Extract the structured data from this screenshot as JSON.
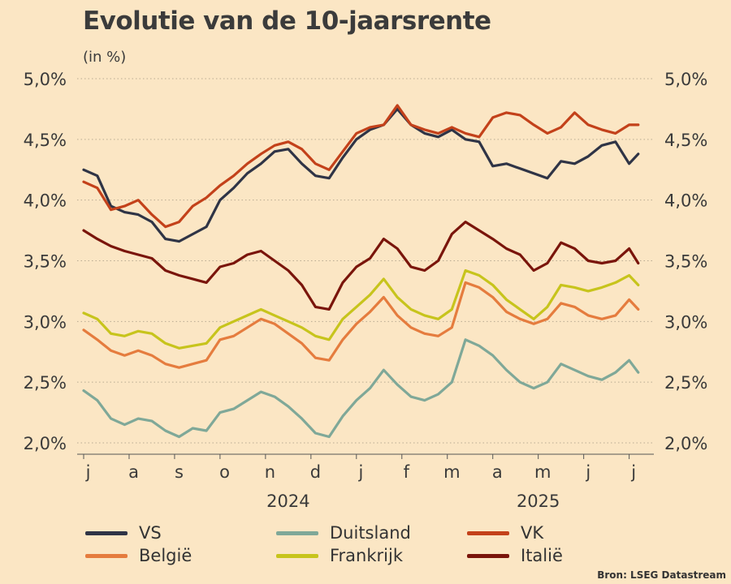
{
  "title": "Evolutie van de 10-jaarsrente",
  "subtitle": "(in %)",
  "source": "Bron: LSEG Datastream",
  "chart_data": {
    "type": "line",
    "y_ticks": [
      "2,0%",
      "2,5%",
      "3,0%",
      "3,5%",
      "4,0%",
      "4,5%",
      "5,0%"
    ],
    "y_tick_values": [
      2.0,
      2.5,
      3.0,
      3.5,
      4.0,
      4.5,
      5.0
    ],
    "ylim": [
      2.0,
      5.0
    ],
    "xlim": [
      0,
      12.4
    ],
    "grid": "horizontal dotted",
    "months": [
      "j",
      "a",
      "s",
      "o",
      "n",
      "d",
      "j",
      "f",
      "m",
      "a",
      "m",
      "j",
      "j"
    ],
    "years": [
      {
        "label": "2024",
        "center_month": 4.5
      },
      {
        "label": "2025",
        "center_month": 10.0
      }
    ],
    "x_note": "x in months since start of July 2024",
    "series": [
      {
        "name": "VS",
        "color": "#2f3446",
        "x": [
          0,
          0.3,
          0.6,
          0.9,
          1.2,
          1.5,
          1.8,
          2.1,
          2.4,
          2.7,
          3.0,
          3.3,
          3.6,
          3.9,
          4.2,
          4.5,
          4.8,
          5.1,
          5.4,
          5.7,
          6.0,
          6.3,
          6.6,
          6.9,
          7.2,
          7.5,
          7.8,
          8.1,
          8.4,
          8.7,
          9.0,
          9.3,
          9.6,
          9.9,
          10.2,
          10.5,
          10.8,
          11.1,
          11.4,
          11.7,
          12.0,
          12.2
        ],
        "values": [
          4.25,
          4.2,
          3.95,
          3.9,
          3.88,
          3.82,
          3.68,
          3.66,
          3.72,
          3.78,
          4.0,
          4.1,
          4.22,
          4.3,
          4.4,
          4.42,
          4.3,
          4.2,
          4.18,
          4.35,
          4.5,
          4.58,
          4.62,
          4.75,
          4.62,
          4.55,
          4.52,
          4.58,
          4.5,
          4.48,
          4.28,
          4.3,
          4.26,
          4.22,
          4.18,
          4.32,
          4.3,
          4.36,
          4.45,
          4.48,
          4.3,
          4.38
        ]
      },
      {
        "name": "VK",
        "color": "#c3411a",
        "x": [
          0,
          0.3,
          0.6,
          0.9,
          1.2,
          1.5,
          1.8,
          2.1,
          2.4,
          2.7,
          3.0,
          3.3,
          3.6,
          3.9,
          4.2,
          4.5,
          4.8,
          5.1,
          5.4,
          5.7,
          6.0,
          6.3,
          6.6,
          6.9,
          7.2,
          7.5,
          7.8,
          8.1,
          8.4,
          8.7,
          9.0,
          9.3,
          9.6,
          9.9,
          10.2,
          10.5,
          10.8,
          11.1,
          11.4,
          11.7,
          12.0,
          12.2
        ],
        "values": [
          4.15,
          4.1,
          3.92,
          3.95,
          4.0,
          3.88,
          3.78,
          3.82,
          3.95,
          4.02,
          4.12,
          4.2,
          4.3,
          4.38,
          4.45,
          4.48,
          4.42,
          4.3,
          4.25,
          4.4,
          4.55,
          4.6,
          4.62,
          4.78,
          4.62,
          4.58,
          4.55,
          4.6,
          4.55,
          4.52,
          4.68,
          4.72,
          4.7,
          4.62,
          4.55,
          4.6,
          4.72,
          4.62,
          4.58,
          4.55,
          4.62,
          4.62
        ]
      },
      {
        "name": "Italië",
        "color": "#7a150b",
        "x": [
          0,
          0.3,
          0.6,
          0.9,
          1.2,
          1.5,
          1.8,
          2.1,
          2.4,
          2.7,
          3.0,
          3.3,
          3.6,
          3.9,
          4.2,
          4.5,
          4.8,
          5.1,
          5.4,
          5.7,
          6.0,
          6.3,
          6.6,
          6.9,
          7.2,
          7.5,
          7.8,
          8.1,
          8.4,
          8.7,
          9.0,
          9.3,
          9.6,
          9.9,
          10.2,
          10.5,
          10.8,
          11.1,
          11.4,
          11.7,
          12.0,
          12.2
        ],
        "values": [
          3.75,
          3.68,
          3.62,
          3.58,
          3.55,
          3.52,
          3.42,
          3.38,
          3.35,
          3.32,
          3.45,
          3.48,
          3.55,
          3.58,
          3.5,
          3.42,
          3.3,
          3.12,
          3.1,
          3.32,
          3.45,
          3.52,
          3.68,
          3.6,
          3.45,
          3.42,
          3.5,
          3.72,
          3.82,
          3.75,
          3.68,
          3.6,
          3.55,
          3.42,
          3.48,
          3.65,
          3.6,
          3.5,
          3.48,
          3.5,
          3.6,
          3.48
        ]
      },
      {
        "name": "Frankrijk",
        "color": "#c7c41c",
        "x": [
          0,
          0.3,
          0.6,
          0.9,
          1.2,
          1.5,
          1.8,
          2.1,
          2.4,
          2.7,
          3.0,
          3.3,
          3.6,
          3.9,
          4.2,
          4.5,
          4.8,
          5.1,
          5.4,
          5.7,
          6.0,
          6.3,
          6.6,
          6.9,
          7.2,
          7.5,
          7.8,
          8.1,
          8.4,
          8.7,
          9.0,
          9.3,
          9.6,
          9.9,
          10.2,
          10.5,
          10.8,
          11.1,
          11.4,
          11.7,
          12.0,
          12.2
        ],
        "values": [
          3.07,
          3.02,
          2.9,
          2.88,
          2.92,
          2.9,
          2.82,
          2.78,
          2.8,
          2.82,
          2.95,
          3.0,
          3.05,
          3.1,
          3.05,
          3.0,
          2.95,
          2.88,
          2.85,
          3.02,
          3.12,
          3.22,
          3.35,
          3.2,
          3.1,
          3.05,
          3.02,
          3.1,
          3.42,
          3.38,
          3.3,
          3.18,
          3.1,
          3.02,
          3.12,
          3.3,
          3.28,
          3.25,
          3.28,
          3.32,
          3.38,
          3.3
        ]
      },
      {
        "name": "België",
        "color": "#e57c3e",
        "x": [
          0,
          0.3,
          0.6,
          0.9,
          1.2,
          1.5,
          1.8,
          2.1,
          2.4,
          2.7,
          3.0,
          3.3,
          3.6,
          3.9,
          4.2,
          4.5,
          4.8,
          5.1,
          5.4,
          5.7,
          6.0,
          6.3,
          6.6,
          6.9,
          7.2,
          7.5,
          7.8,
          8.1,
          8.4,
          8.7,
          9.0,
          9.3,
          9.6,
          9.9,
          10.2,
          10.5,
          10.8,
          11.1,
          11.4,
          11.7,
          12.0,
          12.2
        ],
        "values": [
          2.93,
          2.85,
          2.76,
          2.72,
          2.76,
          2.72,
          2.65,
          2.62,
          2.65,
          2.68,
          2.85,
          2.88,
          2.95,
          3.02,
          2.98,
          2.9,
          2.82,
          2.7,
          2.68,
          2.85,
          2.98,
          3.08,
          3.2,
          3.05,
          2.95,
          2.9,
          2.88,
          2.95,
          3.32,
          3.28,
          3.2,
          3.08,
          3.02,
          2.98,
          3.02,
          3.15,
          3.12,
          3.05,
          3.02,
          3.05,
          3.18,
          3.1
        ]
      },
      {
        "name": "Duitsland",
        "color": "#7fa898",
        "x": [
          0,
          0.3,
          0.6,
          0.9,
          1.2,
          1.5,
          1.8,
          2.1,
          2.4,
          2.7,
          3.0,
          3.3,
          3.6,
          3.9,
          4.2,
          4.5,
          4.8,
          5.1,
          5.4,
          5.7,
          6.0,
          6.3,
          6.6,
          6.9,
          7.2,
          7.5,
          7.8,
          8.1,
          8.4,
          8.7,
          9.0,
          9.3,
          9.6,
          9.9,
          10.2,
          10.5,
          10.8,
          11.1,
          11.4,
          11.7,
          12.0,
          12.2
        ],
        "values": [
          2.43,
          2.35,
          2.2,
          2.15,
          2.2,
          2.18,
          2.1,
          2.05,
          2.12,
          2.1,
          2.25,
          2.28,
          2.35,
          2.42,
          2.38,
          2.3,
          2.2,
          2.08,
          2.05,
          2.22,
          2.35,
          2.45,
          2.6,
          2.48,
          2.38,
          2.35,
          2.4,
          2.5,
          2.85,
          2.8,
          2.72,
          2.6,
          2.5,
          2.45,
          2.5,
          2.65,
          2.6,
          2.55,
          2.52,
          2.58,
          2.68,
          2.58
        ]
      }
    ]
  },
  "legend": [
    {
      "label": "VS",
      "color": "#2f3446"
    },
    {
      "label": "België",
      "color": "#e57c3e"
    },
    {
      "label": "Duitsland",
      "color": "#7fa898"
    },
    {
      "label": "Frankrijk",
      "color": "#c7c41c"
    },
    {
      "label": "VK",
      "color": "#c3411a"
    },
    {
      "label": "Italië",
      "color": "#7a150b"
    }
  ]
}
